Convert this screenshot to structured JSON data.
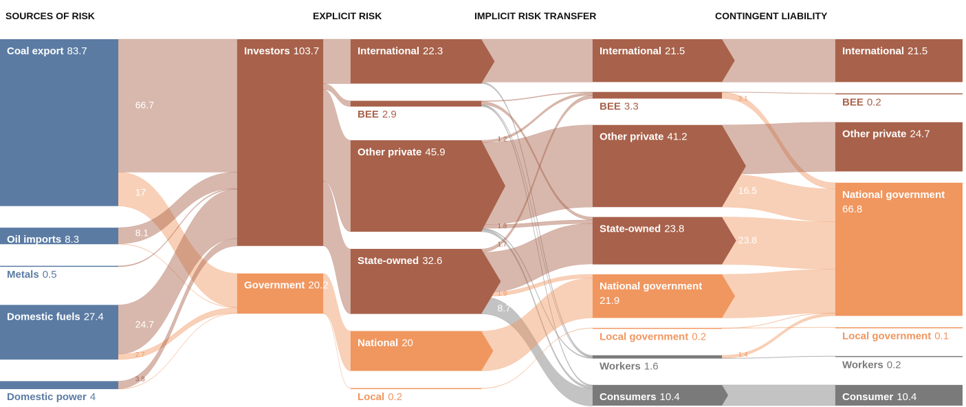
{
  "chart_data": {
    "type": "sankey",
    "columns": [
      "SOURCES OF RISK",
      "EXPLICIT RISK",
      "IMPLICIT RISK TRANSFER",
      "CONTINGENT LIABILITY"
    ],
    "nodes": [
      {
        "name": "Coal export",
        "value": 83.7,
        "column": 0,
        "color": "#5b7ba3"
      },
      {
        "name": "Oil imports",
        "value": 8.3,
        "column": 0,
        "color": "#5b7ba3"
      },
      {
        "name": "Metals",
        "value": 0.5,
        "column": 0,
        "color": "#5b7ba3"
      },
      {
        "name": "Domestic fuels",
        "value": 27.4,
        "column": 0,
        "color": "#5b7ba3"
      },
      {
        "name": "Domestic power",
        "value": 4,
        "column": 0,
        "color": "#5b7ba3"
      },
      {
        "name": "Investors",
        "value": 103.7,
        "column": 1,
        "color": "#a8614a"
      },
      {
        "name": "Government",
        "value": 20.2,
        "column": 1,
        "color": "#f0965f"
      },
      {
        "name": "International",
        "value": 22.3,
        "column": 2,
        "color": "#a8614a"
      },
      {
        "name": "BEE",
        "value": 2.9,
        "column": 2,
        "color": "#a8614a"
      },
      {
        "name": "Other private",
        "value": 45.9,
        "column": 2,
        "color": "#a8614a"
      },
      {
        "name": "State-owned",
        "value": 32.6,
        "column": 2,
        "color": "#a8614a"
      },
      {
        "name": "National",
        "value": 20,
        "column": 2,
        "color": "#f0965f"
      },
      {
        "name": "Local",
        "value": 0.2,
        "column": 2,
        "color": "#f0965f"
      },
      {
        "name": "International",
        "value": 21.5,
        "column": 3,
        "color": "#a8614a"
      },
      {
        "name": "BEE",
        "value": 3.3,
        "column": 3,
        "color": "#a8614a"
      },
      {
        "name": "Other private",
        "value": 41.2,
        "column": 3,
        "color": "#a8614a"
      },
      {
        "name": "State-owned",
        "value": 23.8,
        "column": 3,
        "color": "#a8614a"
      },
      {
        "name": "National government",
        "value": 21.9,
        "column": 3,
        "color": "#f0965f"
      },
      {
        "name": "Local government",
        "value": 0.2,
        "column": 3,
        "color": "#f0965f"
      },
      {
        "name": "Workers",
        "value": 1.6,
        "column": 3,
        "color": "#7a7a7a"
      },
      {
        "name": "Consumers",
        "value": 10.4,
        "column": 3,
        "color": "#7a7a7a"
      },
      {
        "name": "International",
        "value": 21.5,
        "column": 4,
        "color": "#a8614a"
      },
      {
        "name": "BEE",
        "value": 0.2,
        "column": 4,
        "color": "#a8614a"
      },
      {
        "name": "Other private",
        "value": 24.7,
        "column": 4,
        "color": "#a8614a"
      },
      {
        "name": "National government",
        "value": 66.8,
        "column": 4,
        "color": "#f0965f"
      },
      {
        "name": "Local government",
        "value": 0.1,
        "column": 4,
        "color": "#f0965f"
      },
      {
        "name": "Workers",
        "value": 0.2,
        "column": 4,
        "color": "#7a7a7a"
      },
      {
        "name": "Consumer",
        "value": 10.4,
        "column": 4,
        "color": "#7a7a7a"
      }
    ],
    "links": [
      {
        "source": 0,
        "target": 5,
        "value": 66.7,
        "labeled": true
      },
      {
        "source": 0,
        "target": 6,
        "value": 17,
        "labeled": true
      },
      {
        "source": 1,
        "target": 5,
        "value": 8.1,
        "labeled": true
      },
      {
        "source": 1,
        "target": 6,
        "value": 0.2
      },
      {
        "source": 2,
        "target": 5,
        "value": 0.5
      },
      {
        "source": 3,
        "target": 5,
        "value": 24.7,
        "labeled": true
      },
      {
        "source": 3,
        "target": 6,
        "value": 2.7,
        "labeled": true
      },
      {
        "source": 4,
        "target": 5,
        "value": 3.8,
        "labeled": true
      },
      {
        "source": 4,
        "target": 6,
        "value": 0.2
      },
      {
        "source": 5,
        "target": 7,
        "value": 22.3
      },
      {
        "source": 5,
        "target": 8,
        "value": 2.9
      },
      {
        "source": 5,
        "target": 9,
        "value": 45.9
      },
      {
        "source": 5,
        "target": 10,
        "value": 32.6
      },
      {
        "source": 6,
        "target": 11,
        "value": 20
      },
      {
        "source": 6,
        "target": 12,
        "value": 0.2
      },
      {
        "source": 7,
        "target": 13,
        "value": 21.5
      },
      {
        "source": 7,
        "target": 19,
        "value": 0.8
      },
      {
        "source": 8,
        "target": 14,
        "value": 0.4
      },
      {
        "source": 8,
        "target": 16,
        "value": 1.5
      },
      {
        "source": 8,
        "target": 19,
        "value": 0.3
      },
      {
        "source": 8,
        "target": 20,
        "value": 0.7
      },
      {
        "source": 9,
        "target": 14,
        "value": 1.2,
        "labeled": true
      },
      {
        "source": 9,
        "target": 15,
        "value": 41.2
      },
      {
        "source": 9,
        "target": 16,
        "value": 1.8,
        "labeled": true
      },
      {
        "source": 9,
        "target": 19,
        "value": 0.5
      },
      {
        "source": 9,
        "target": 20,
        "value": 1.2
      },
      {
        "source": 10,
        "target": 14,
        "value": 1.7,
        "labeled": true
      },
      {
        "source": 10,
        "target": 16,
        "value": 20.3
      },
      {
        "source": 10,
        "target": 17,
        "value": 1.9,
        "labeled": true
      },
      {
        "source": 10,
        "target": 20,
        "value": 8.7,
        "labeled": true
      },
      {
        "source": 11,
        "target": 17,
        "value": 20
      },
      {
        "source": 12,
        "target": 18,
        "value": 0.2
      },
      {
        "source": 13,
        "target": 21,
        "value": 21.5
      },
      {
        "source": 14,
        "target": 22,
        "value": 0.2
      },
      {
        "source": 14,
        "target": 24,
        "value": 3.1,
        "labeled": true
      },
      {
        "source": 15,
        "target": 23,
        "value": 24.7
      },
      {
        "source": 15,
        "target": 24,
        "value": 16.5,
        "labeled": true
      },
      {
        "source": 16,
        "target": 24,
        "value": 23.8,
        "labeled": true
      },
      {
        "source": 17,
        "target": 24,
        "value": 21.9
      },
      {
        "source": 18,
        "target": 25,
        "value": 0.1
      },
      {
        "source": 18,
        "target": 24,
        "value": 0.1
      },
      {
        "source": 19,
        "target": 24,
        "value": 1.4,
        "labeled": true
      },
      {
        "source": 19,
        "target": 26,
        "value": 0.2
      },
      {
        "source": 20,
        "target": 27,
        "value": 10.4
      }
    ]
  }
}
